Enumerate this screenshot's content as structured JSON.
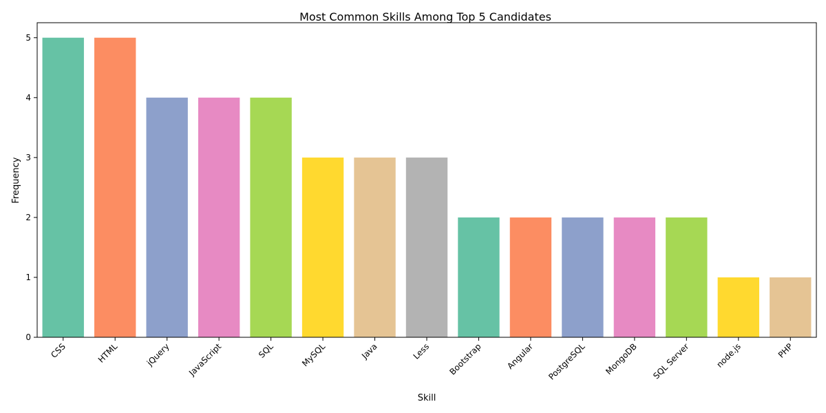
{
  "chart_data": {
    "type": "bar",
    "title": "Most Common Skills Among Top 5 Candidates",
    "xlabel": "Skill",
    "ylabel": "Frequency",
    "categories": [
      "CSS",
      "HTML",
      "jQuery",
      "JavaScript",
      "SQL",
      "MySQL",
      "Java",
      "Less",
      "Bootstrap",
      "Angular",
      "PostgreSQL",
      "MongoDB",
      "SQL Server",
      "node.js",
      "PHP"
    ],
    "values": [
      5,
      5,
      4,
      4,
      4,
      3,
      3,
      3,
      2,
      2,
      2,
      2,
      2,
      1,
      1
    ],
    "ylim": [
      0,
      5.25
    ],
    "yticks": [
      0,
      1,
      2,
      3,
      4,
      5
    ],
    "grid": false,
    "legend": "none",
    "palette": [
      "#66c2a5",
      "#fc8d62",
      "#8da0cb",
      "#e78ac3",
      "#a6d854",
      "#ffd92f",
      "#e5c494",
      "#b3b3b3"
    ]
  }
}
